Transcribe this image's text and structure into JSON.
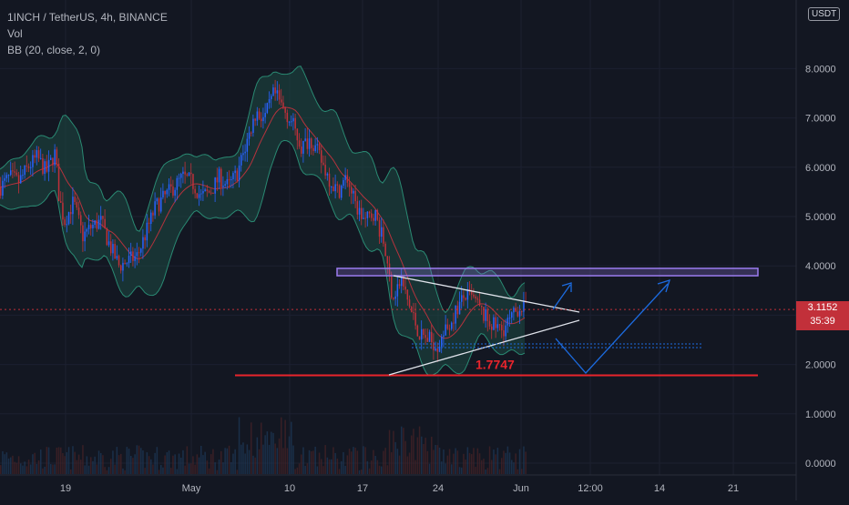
{
  "header": {
    "symbol_line": "1INCH / TetherUS, 4h, BINANCE",
    "indicator_vol": "Vol",
    "indicator_bb": "BB (20, close, 2, 0)"
  },
  "price_scale": {
    "currency": "USDT",
    "last_price": "3.1152",
    "countdown": "35:39"
  },
  "colors": {
    "background": "#131722",
    "bullish": "#2962ff",
    "bearish": "#c2303a",
    "bb_fill": "#1e4a44",
    "bb_band": "#2a8a73",
    "bb_basis": "#b5333d",
    "resistance_box": "#9c7cf0",
    "support_line": "#e8242c",
    "projection": "#1c6be0"
  },
  "chart_data": {
    "type": "candlestick",
    "symbol": "1INCH / TetherUS",
    "timeframe": "4h",
    "exchange": "BINANCE",
    "x_tick_labels": [
      "19",
      "May",
      "10",
      "17",
      "24",
      "Jun",
      "12:00",
      "14",
      "21"
    ],
    "y_ticks": [
      "0.0000",
      "1.0000",
      "2.0000",
      "3.0000",
      "4.0000",
      "5.0000",
      "6.0000",
      "7.0000",
      "8.0000"
    ],
    "ylim": [
      0,
      9.3
    ],
    "price_path": [
      [
        0,
        5.6
      ],
      [
        10,
        5.8
      ],
      [
        20,
        5.7
      ],
      [
        30,
        6.0
      ],
      [
        40,
        6.2
      ],
      [
        50,
        5.9
      ],
      [
        60,
        6.3
      ],
      [
        64,
        5.4
      ],
      [
        70,
        4.9
      ],
      [
        80,
        5.3
      ],
      [
        90,
        4.6
      ],
      [
        100,
        4.8
      ],
      [
        110,
        4.9
      ],
      [
        120,
        4.4
      ],
      [
        130,
        4.0
      ],
      [
        140,
        4.1
      ],
      [
        150,
        4.2
      ],
      [
        160,
        4.7
      ],
      [
        170,
        5.2
      ],
      [
        180,
        5.4
      ],
      [
        190,
        5.6
      ],
      [
        200,
        5.8
      ],
      [
        210,
        5.7
      ],
      [
        220,
        5.4
      ],
      [
        230,
        5.5
      ],
      [
        240,
        5.8
      ],
      [
        250,
        5.6
      ],
      [
        260,
        5.9
      ],
      [
        270,
        6.5
      ],
      [
        280,
        7.1
      ],
      [
        290,
        7.0
      ],
      [
        300,
        7.5
      ],
      [
        310,
        7.2
      ],
      [
        320,
        6.9
      ],
      [
        330,
        6.4
      ],
      [
        340,
        6.6
      ],
      [
        350,
        6.2
      ],
      [
        360,
        5.8
      ],
      [
        370,
        5.5
      ],
      [
        380,
        5.8
      ],
      [
        390,
        5.2
      ],
      [
        400,
        4.9
      ],
      [
        410,
        5.1
      ],
      [
        420,
        4.5
      ],
      [
        430,
        3.4
      ],
      [
        440,
        3.7
      ],
      [
        450,
        3.1
      ],
      [
        460,
        2.6
      ],
      [
        470,
        2.5
      ],
      [
        480,
        2.4
      ],
      [
        490,
        2.7
      ],
      [
        500,
        3.1
      ],
      [
        510,
        3.4
      ],
      [
        520,
        3.3
      ],
      [
        530,
        3.0
      ],
      [
        540,
        2.8
      ],
      [
        550,
        2.7
      ],
      [
        560,
        2.9
      ],
      [
        570,
        3.2
      ],
      [
        578,
        3.1
      ]
    ],
    "resistance_zone": [
      3.8,
      3.95
    ],
    "support_level": 1.78,
    "support_label": "1.7747",
    "current_price": 3.1152
  }
}
